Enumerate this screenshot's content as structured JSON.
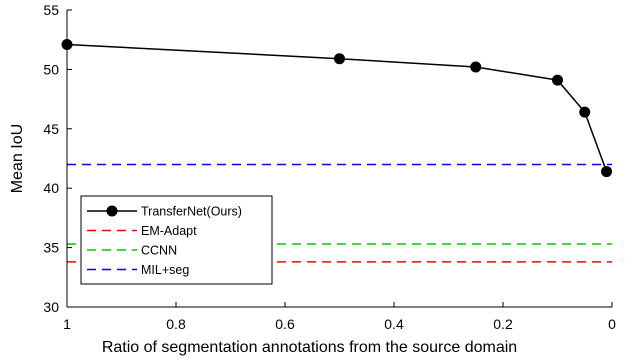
{
  "chart_data": {
    "type": "line",
    "xlabel": "Ratio of segmentation annotations from the source domain",
    "ylabel": "Mean IoU",
    "xlim": [
      1,
      0
    ],
    "ylim": [
      30,
      55
    ],
    "x_reversed": true,
    "grid": false,
    "legend_position": "bottom-left",
    "x_ticks": [
      {
        "value": 1,
        "label": "1"
      },
      {
        "value": 0.8,
        "label": "0.8"
      },
      {
        "value": 0.6,
        "label": "0.6"
      },
      {
        "value": 0.4,
        "label": "0.4"
      },
      {
        "value": 0.2,
        "label": "0.2"
      },
      {
        "value": 0,
        "label": "0"
      }
    ],
    "y_ticks": [
      {
        "value": 30,
        "label": "30"
      },
      {
        "value": 35,
        "label": "35"
      },
      {
        "value": 40,
        "label": "40"
      },
      {
        "value": 45,
        "label": "45"
      },
      {
        "value": 50,
        "label": "50"
      },
      {
        "value": 55,
        "label": "55"
      }
    ],
    "series": [
      {
        "name": "TransferNet(Ours)",
        "color": "#000000",
        "style": "solid-with-markers",
        "x": [
          1,
          0.5,
          0.25,
          0.1,
          0.05,
          0.01
        ],
        "y": [
          52.1,
          50.9,
          50.2,
          49.1,
          46.4,
          41.4
        ]
      },
      {
        "name": "EM-Adapt",
        "color": "#ff0000",
        "style": "dashed",
        "x": [
          1,
          0
        ],
        "y": [
          33.8,
          33.8
        ]
      },
      {
        "name": "CCNN",
        "color": "#00cc00",
        "style": "dashed",
        "x": [
          1,
          0
        ],
        "y": [
          35.3,
          35.3
        ]
      },
      {
        "name": "MIL+seg",
        "color": "#0000ff",
        "style": "dashed",
        "x": [
          1,
          0
        ],
        "y": [
          42.0,
          42.0
        ]
      }
    ]
  }
}
